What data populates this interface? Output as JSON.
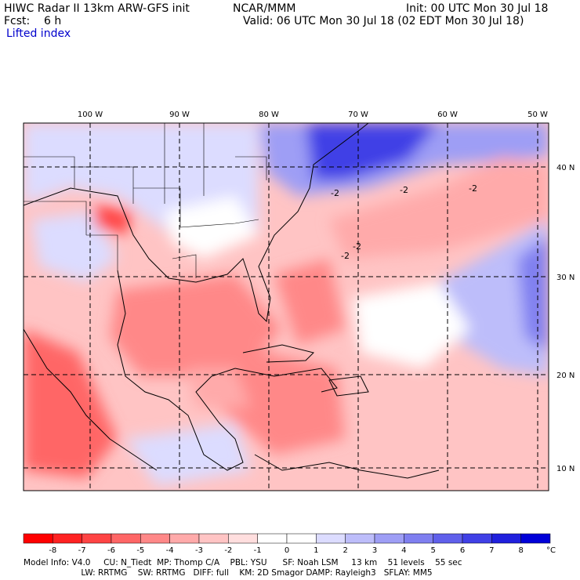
{
  "header": {
    "title_left": "HIWC Radar II 13km ARW-GFS init",
    "org": "NCAR/MMM",
    "init": "Init: 00 UTC Mon 30 Jul 18",
    "fcst": "Fcst:    6 h",
    "valid": "Valid: 06 UTC Mon 30 Jul 18 (02 EDT Mon 30 Jul 18)",
    "field": "Lifted index"
  },
  "map": {
    "lon_labels": [
      "100 W",
      "90 W",
      "80 W",
      "70 W",
      "60 W",
      "50 W"
    ],
    "lat_labels": [
      "40 N",
      "30 N",
      "20 N",
      "10 N"
    ],
    "contour_labels": [
      "-2",
      "-2",
      "-2",
      "-2",
      "-2"
    ]
  },
  "colorbar": {
    "colors": [
      "#ff0000",
      "#ff2222",
      "#ff4444",
      "#ff6666",
      "#ff8888",
      "#ffaaaa",
      "#ffc4c4",
      "#ffdede",
      "#ffffff",
      "#ffffff",
      "#dcdcff",
      "#bdbdfa",
      "#9e9ef5",
      "#7f7ff0",
      "#6060eb",
      "#4040e6",
      "#2020dd",
      "#0000d8"
    ],
    "labels": [
      "-8",
      "-7",
      "-6",
      "-5",
      "-4",
      "-3",
      "-2",
      "-1",
      "0",
      "1",
      "2",
      "3",
      "4",
      "5",
      "6",
      "7",
      "8"
    ],
    "unit": "°C"
  },
  "footer": {
    "line1": "Model Info: V4.0     CU: N_Tiedt  MP: Thomp C/A    PBL: YSU      SF: Noah LSM     13 km    51 levels    55 sec",
    "line2": "                      LW: RRTMG    SW: RRTMG   DIFF: full    KM: 2D Smagor DAMP: Rayleigh3   SFLAY: MM5"
  }
}
